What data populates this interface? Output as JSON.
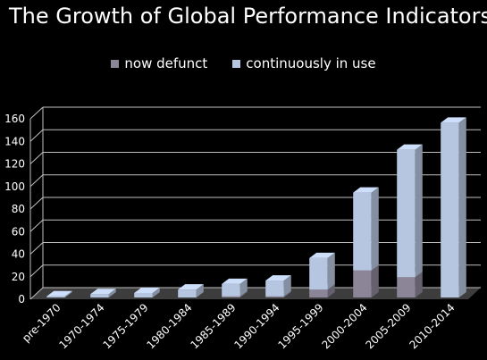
{
  "title": "The Growth of Global Performance Indicators",
  "colors": {
    "background": "#000000",
    "now_defunct": "#8c8598",
    "continuously_in_use": "#b7c6e0",
    "floor": "#3d3d3d",
    "grid": "#bfbfbf"
  },
  "chart_data": {
    "type": "bar",
    "stacked": true,
    "three_d": true,
    "title": "The Growth of Global Performance Indicators",
    "categories": [
      "pre-1970",
      "1970-1974",
      "1975-1979",
      "1980-1984",
      "1985-1989",
      "1990-1994",
      "1995-1999",
      "2000-2004",
      "2005-2009",
      "2010-2014"
    ],
    "series": [
      {
        "name": "now defunct",
        "values": [
          0,
          0,
          0,
          0,
          1,
          1,
          7,
          24,
          18,
          0
        ]
      },
      {
        "name": "continuously in use",
        "values": [
          1,
          3,
          4,
          7,
          11,
          14,
          28,
          69,
          113,
          155
        ]
      }
    ],
    "y_ticks": [
      0,
      20,
      40,
      60,
      80,
      100,
      120,
      140,
      160
    ],
    "ylim": [
      0,
      160
    ],
    "xlabel": "",
    "ylabel": "",
    "grid": true,
    "legend_position": "top"
  }
}
